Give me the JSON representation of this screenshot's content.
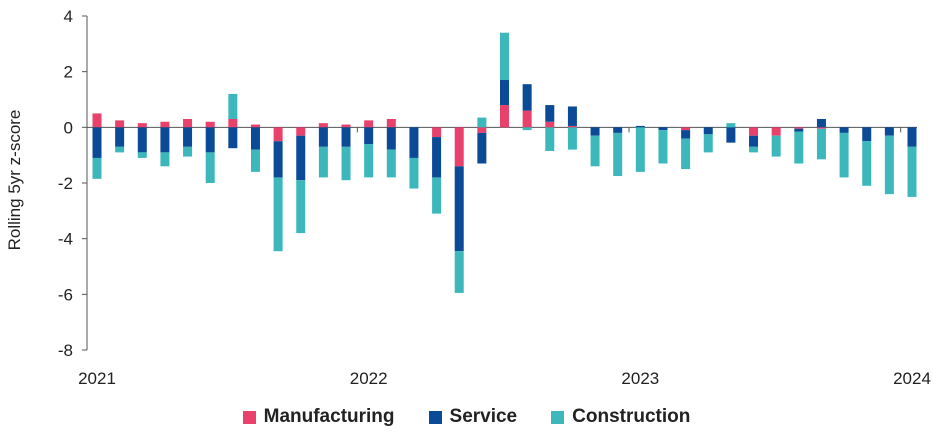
{
  "chart_data": {
    "type": "bar",
    "stacked": true,
    "ylabel": "Rolling 5yr z-score",
    "xlabel": "",
    "title": "",
    "ylim": [
      -8,
      4
    ],
    "yticks": [
      4,
      2,
      0,
      -2,
      -4,
      -6,
      -8
    ],
    "xticks": [
      "2021",
      "2022",
      "2023",
      "2024"
    ],
    "legend_position": "bottom-center",
    "grid": false,
    "categories": [
      "Jan 2021",
      "Feb 2021",
      "Mar 2021",
      "Apr 2021",
      "May 2021",
      "Jun 2021",
      "Jul 2021",
      "Aug 2021",
      "Sep 2021",
      "Oct 2021",
      "Nov 2021",
      "Dec 2021",
      "Jan 2022",
      "Feb 2022",
      "Mar 2022",
      "Apr 2022",
      "May 2022",
      "Jun 2022",
      "Jul 2022",
      "Aug 2022",
      "Sep 2022",
      "Oct 2022",
      "Nov 2022",
      "Dec 2022",
      "Jan 2023",
      "Feb 2023",
      "Mar 2023",
      "Apr 2023",
      "May 2023",
      "Jun 2023",
      "Jul 2023",
      "Aug 2023",
      "Sep 2023",
      "Oct 2023",
      "Nov 2023",
      "Dec 2023",
      "Jan 2024"
    ],
    "series": [
      {
        "name": "Manufacturing",
        "color": "#e8416b",
        "values": [
          0.5,
          0.25,
          0.15,
          0.2,
          0.3,
          0.2,
          0.3,
          0.1,
          -0.5,
          -0.3,
          0.15,
          0.1,
          0.25,
          0.3,
          0.0,
          -0.35,
          -1.4,
          -0.2,
          0.8,
          0.6,
          0.2,
          0.05,
          0.0,
          0.0,
          0.0,
          0.0,
          -0.1,
          0.0,
          0.0,
          -0.3,
          -0.3,
          -0.05,
          -0.05,
          0.0,
          0.0,
          0.0,
          0.0
        ]
      },
      {
        "name": "Service",
        "color": "#0a4a96",
        "values": [
          -1.1,
          -0.7,
          -0.9,
          -0.9,
          -0.7,
          -0.9,
          -0.75,
          -0.8,
          -1.3,
          -1.6,
          -0.7,
          -0.7,
          -0.6,
          -0.8,
          -1.1,
          -1.45,
          -3.05,
          -1.1,
          0.9,
          0.95,
          0.6,
          0.7,
          -0.3,
          -0.2,
          0.05,
          -0.1,
          -0.3,
          -0.25,
          -0.55,
          -0.4,
          0.0,
          -0.1,
          0.3,
          -0.2,
          -0.5,
          -0.3,
          -0.7
        ]
      },
      {
        "name": "Construction",
        "color": "#3cb8bc",
        "values": [
          -0.75,
          -0.2,
          -0.2,
          -0.5,
          -0.35,
          -1.1,
          0.9,
          -0.8,
          -2.65,
          -1.9,
          -1.1,
          -1.2,
          -1.2,
          -1.0,
          -1.1,
          -1.3,
          -1.5,
          0.35,
          1.7,
          -0.1,
          -0.85,
          -0.8,
          -1.1,
          -1.55,
          -1.6,
          -1.2,
          -1.1,
          -0.65,
          0.15,
          -0.2,
          -0.75,
          -1.15,
          -1.1,
          -1.6,
          -1.6,
          -2.1,
          -1.8
        ]
      }
    ]
  }
}
